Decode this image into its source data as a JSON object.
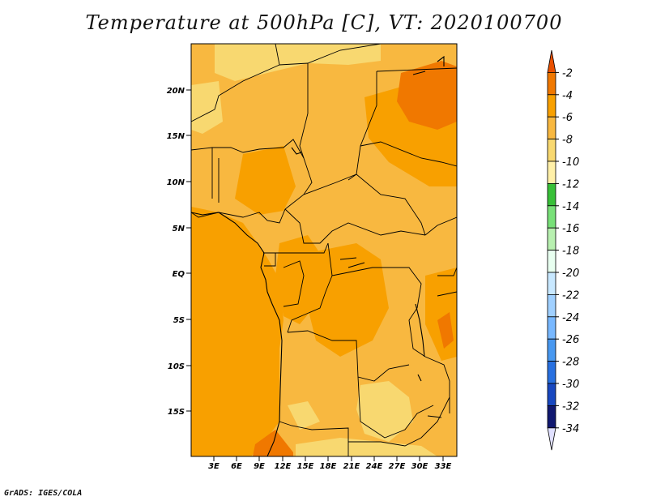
{
  "title": "Temperature at 500hPa [C], VT: 2020100700",
  "credit": "GrADS: IGES/COLA",
  "map": {
    "lat_labels": [
      "20N",
      "15N",
      "10N",
      "5N",
      "EQ",
      "5S",
      "10S",
      "15S"
    ],
    "lon_labels": [
      "3E",
      "6E",
      "9E",
      "12E",
      "15E",
      "18E",
      "21E",
      "24E",
      "27E",
      "30E",
      "33E"
    ]
  },
  "colorbar": {
    "labels": [
      "-2",
      "-4",
      "-6",
      "-8",
      "-10",
      "-12",
      "-14",
      "-16",
      "-18",
      "-20",
      "-22",
      "-24",
      "-26",
      "-28",
      "-30",
      "-32",
      "-34"
    ],
    "colors": [
      "#e85000",
      "#f07800",
      "#f8a000",
      "#f8b840",
      "#f8d870",
      "#fff0a8",
      "#38c038",
      "#78e078",
      "#b8f0b0",
      "#e8fff0",
      "#c8e8ff",
      "#a0d0ff",
      "#78b8ff",
      "#4898f0",
      "#2870e0",
      "#1848c0",
      "#101870",
      "#e0e0ff"
    ]
  }
}
